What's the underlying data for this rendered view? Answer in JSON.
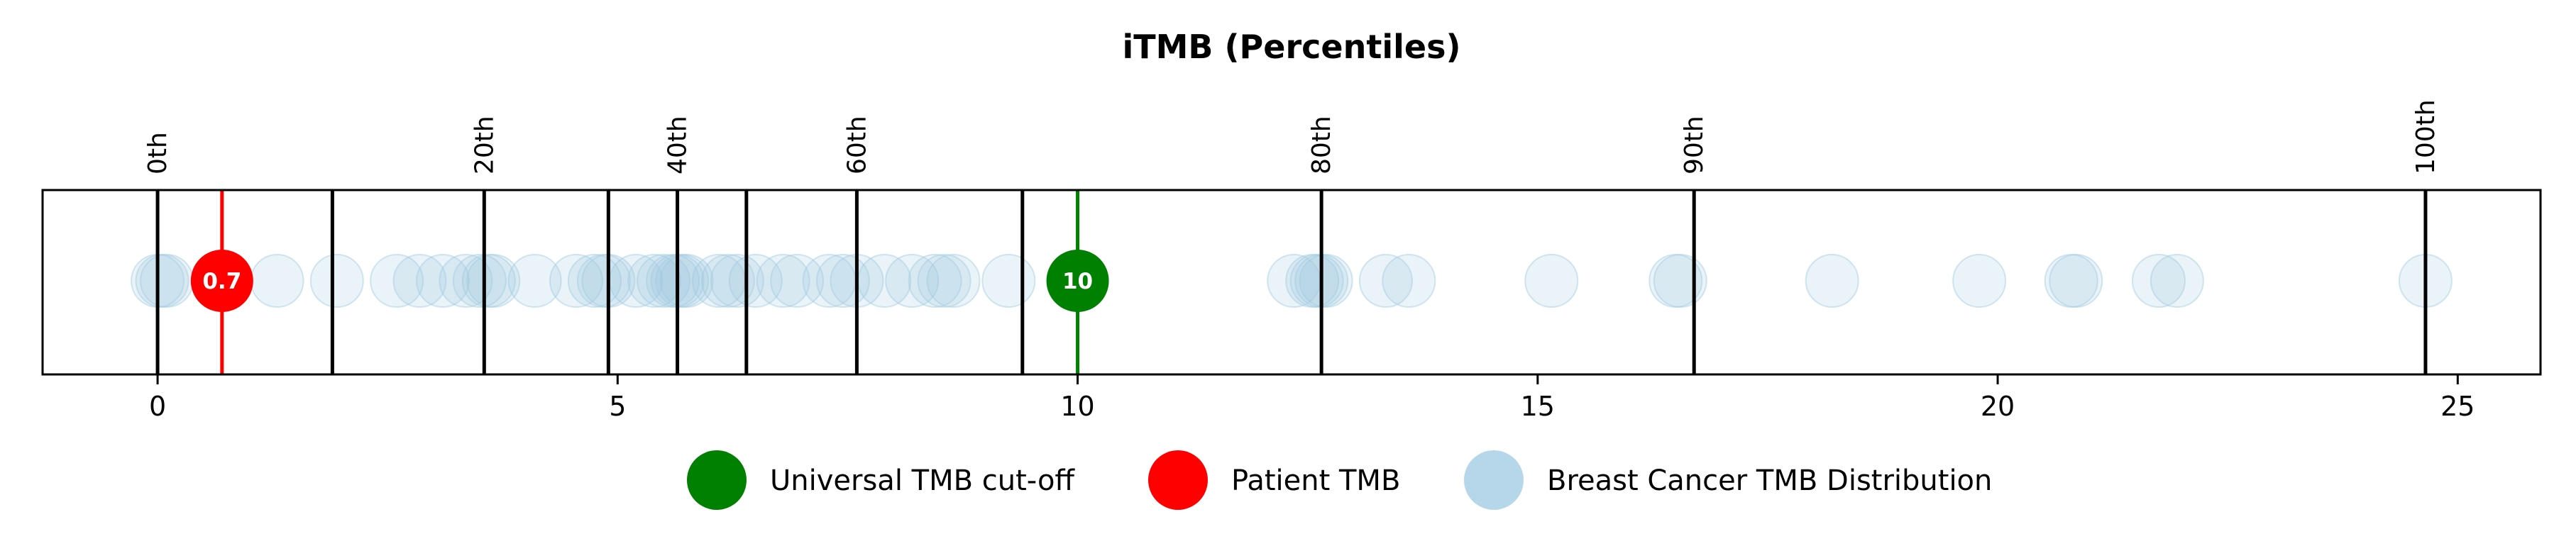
{
  "chart_data": {
    "type": "scatter",
    "title": "iTMB (Percentiles)",
    "xlabel": "",
    "ylabel": "",
    "xlim": [
      -1.25,
      25.9
    ],
    "x_ticks": [
      0,
      5,
      10,
      15,
      20,
      25
    ],
    "percentile_lines": [
      {
        "x": 0.0,
        "label": "0th"
      },
      {
        "x": 1.9
      },
      {
        "x": 3.55,
        "label": "20th"
      },
      {
        "x": 4.9
      },
      {
        "x": 5.65,
        "label": "40th"
      },
      {
        "x": 6.4
      },
      {
        "x": 7.6,
        "label": "60th"
      },
      {
        "x": 9.4
      },
      {
        "x": 12.65,
        "label": "80th"
      },
      {
        "x": 16.7,
        "label": "90th"
      },
      {
        "x": 24.65,
        "label": "100th"
      }
    ],
    "patient_tmb": {
      "value": 0.7,
      "label": "0.7",
      "color": "#ff0000"
    },
    "universal_cutoff": {
      "value": 10,
      "label": "10",
      "color": "#008000"
    },
    "distribution": {
      "color": "#9ecae1",
      "values": [
        0.0,
        0.05,
        0.1,
        1.3,
        1.95,
        2.6,
        2.85,
        3.1,
        3.35,
        3.5,
        3.6,
        3.65,
        4.1,
        4.55,
        4.75,
        4.85,
        4.9,
        5.2,
        5.4,
        5.5,
        5.6,
        5.65,
        5.7,
        5.75,
        6.1,
        6.2,
        6.3,
        6.5,
        6.8,
        6.95,
        7.3,
        7.45,
        7.6,
        7.9,
        8.2,
        8.45,
        8.55,
        8.65,
        9.25,
        12.35,
        12.55,
        12.6,
        12.65,
        12.7,
        13.35,
        13.6,
        15.15,
        16.5,
        16.55,
        18.2,
        19.8,
        20.8,
        20.85,
        21.75,
        21.95,
        24.65
      ]
    },
    "legend": {
      "placement": "bottom-center",
      "entries": [
        {
          "label": "Universal TMB cut-off",
          "color": "#008000"
        },
        {
          "label": "Patient TMB",
          "color": "#ff0000"
        },
        {
          "label": "Breast Cancer TMB Distribution",
          "color": "#9ecae1"
        }
      ]
    },
    "grid": false
  }
}
